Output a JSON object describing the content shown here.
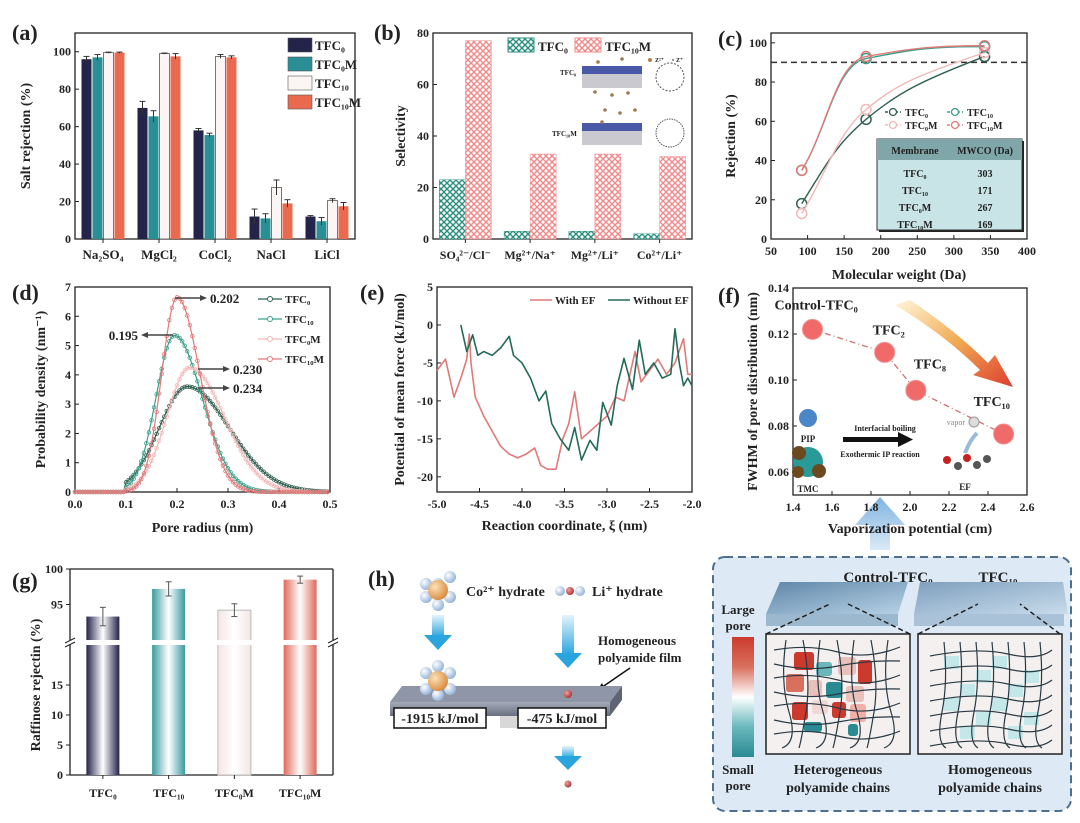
{
  "figure": {
    "panel_labels": [
      "(a)",
      "(b)",
      "(c)",
      "(d)",
      "(e)",
      "(f)",
      "(g)",
      "(h)"
    ]
  },
  "chart_data": [
    {
      "id": "a",
      "type": "bar",
      "title": "",
      "xlabel": "",
      "ylabel": "Salt rejection (%)",
      "ylim": [
        0,
        110
      ],
      "yticks": [
        "0",
        "20",
        "40",
        "60",
        "80",
        "100"
      ],
      "categories": [
        "Na₂SO₄",
        "MgCl₂",
        "CoCl₂",
        "NaCl",
        "LiCl"
      ],
      "legend_position": "top-right",
      "series": [
        {
          "name": "TFC₀",
          "color": "#24234a",
          "values": [
            96,
            70,
            58,
            12,
            12
          ],
          "errors": [
            1.5,
            3.5,
            1,
            4,
            0.5
          ]
        },
        {
          "name": "TFC₀M",
          "color": "#2a8f95",
          "values": [
            97,
            65.5,
            55.5,
            11,
            9.5
          ],
          "errors": [
            1.5,
            3,
            1,
            2.5,
            2
          ]
        },
        {
          "name": "TFC₁₀",
          "color": "#fbf6f4",
          "values": [
            99.5,
            99,
            97.5,
            27.5,
            20.5
          ],
          "errors": [
            0.3,
            0.3,
            1,
            4,
            1
          ]
        },
        {
          "name": "TFC₁₀M",
          "color": "#e96a4f",
          "values": [
            99.5,
            97.5,
            97,
            19,
            17.5
          ],
          "errors": [
            0.3,
            1.5,
            0.8,
            2,
            2
          ]
        }
      ]
    },
    {
      "id": "b",
      "type": "bar",
      "xlabel": "",
      "ylabel": "Selectivity",
      "ylim": [
        0,
        80
      ],
      "yticks": [
        "0",
        "20",
        "40",
        "60",
        "80"
      ],
      "categories": [
        "SO₄²⁻/Cl⁻",
        "Mg²⁺/Na⁺",
        "Mg²⁺/Li⁺",
        "Co²⁺/Li⁺"
      ],
      "legend_position": "top",
      "series": [
        {
          "name": "TFC₀",
          "color": "#2a8f7f",
          "pattern": "crosshatch",
          "values": [
            23,
            3,
            3,
            2
          ]
        },
        {
          "name": "TFC₁₀M",
          "color": "#f08a8a",
          "pattern": "crosshatch",
          "values": [
            77,
            33,
            33,
            32
          ]
        }
      ],
      "inset": {
        "labels": [
          "TFC₀",
          "TFC₁₀M"
        ],
        "legend": [
          "Z²⁺",
          "Z⁺"
        ]
      }
    },
    {
      "id": "c",
      "type": "line",
      "xlabel": "Molecular weight (Da)",
      "ylabel": "Rejection (%)",
      "xlim": [
        50,
        400
      ],
      "ylim": [
        0,
        100
      ],
      "xticks": [
        "50",
        "100",
        "150",
        "200",
        "250",
        "300",
        "350",
        "400"
      ],
      "yticks": [
        "0",
        "20",
        "40",
        "60",
        "80",
        "100"
      ],
      "reference_line": 90,
      "x": [
        92,
        180,
        342
      ],
      "legend_position": "center-right",
      "series": [
        {
          "name": "TFC₀",
          "color": "#2f5f4f",
          "values": [
            18,
            61,
            93
          ]
        },
        {
          "name": "TFC₁₀",
          "color": "#3aa08a",
          "values": [
            35,
            92,
            98
          ]
        },
        {
          "name": "TFC₀M",
          "color": "#f2b8b8",
          "values": [
            13,
            66,
            95
          ]
        },
        {
          "name": "TFC₁₀M",
          "color": "#e07a7a",
          "values": [
            35,
            93,
            98.5
          ]
        }
      ],
      "table": {
        "headers": [
          "Membrane",
          "MWCO (Da)"
        ],
        "rows": [
          [
            "TFC₀",
            "303"
          ],
          [
            "TFC₁₀",
            "171"
          ],
          [
            "TFC₀M",
            "267"
          ],
          [
            "TFC₁₀M",
            "169"
          ]
        ]
      }
    },
    {
      "id": "d",
      "type": "line",
      "xlabel": "Pore radius (nm)",
      "ylabel": "Probability density (nm⁻¹)",
      "xlim": [
        0,
        0.5
      ],
      "ylim": [
        0,
        7
      ],
      "xticks": [
        "0.0",
        "0.1",
        "0.2",
        "0.3",
        "0.4",
        "0.5"
      ],
      "yticks": [
        "0",
        "1",
        "2",
        "3",
        "4",
        "5",
        "6",
        "7"
      ],
      "legend_position": "top-right",
      "series": [
        {
          "name": "TFC₀",
          "color": "#2f5f4f",
          "peak_x": 0.22,
          "peak_y": 3.6,
          "sigma": 0.055,
          "annotation": "0.234"
        },
        {
          "name": "TFC₁₀",
          "color": "#3aa08a",
          "peak_x": 0.195,
          "peak_y": 5.35,
          "sigma": 0.036,
          "annotation": "0.195"
        },
        {
          "name": "TFC₀M",
          "color": "#f2b8b8",
          "peak_x": 0.225,
          "peak_y": 4.25,
          "sigma": 0.045,
          "annotation": "0.230"
        },
        {
          "name": "TFC₁₀M",
          "color": "#e07a7a",
          "peak_x": 0.2,
          "peak_y": 6.65,
          "sigma": 0.03,
          "annotation": "0.202"
        }
      ]
    },
    {
      "id": "e",
      "type": "line",
      "xlabel": "Reaction coordinate, ξ (nm)",
      "ylabel": "Potential of mean force (kJ/mol)",
      "xlim": [
        -5.0,
        -2.0
      ],
      "ylim": [
        -22,
        5
      ],
      "xticks": [
        "-5.0",
        "-4.5",
        "-4.0",
        "-3.5",
        "-3.0",
        "-2.5",
        "-2.0"
      ],
      "yticks": [
        "-20",
        "-15",
        "-10",
        "-5",
        "0",
        "5"
      ],
      "legend_position": "top-right",
      "series": [
        {
          "name": "With EF",
          "color": "#e07a7a",
          "x": [
            -5.0,
            -4.9,
            -4.8,
            -4.72,
            -4.65,
            -4.62,
            -4.6,
            -4.55,
            -4.45,
            -4.35,
            -4.25,
            -4.15,
            -4.05,
            -3.95,
            -3.85,
            -3.78,
            -3.7,
            -3.6,
            -3.52,
            -3.45,
            -3.38,
            -3.3,
            -3.2,
            -3.1,
            -3.0,
            -2.9,
            -2.8,
            -2.7,
            -2.67,
            -2.6,
            -2.5,
            -2.4,
            -2.3,
            -2.2,
            -2.1,
            -2.05,
            -2.0
          ],
          "values": [
            -6,
            -4.5,
            -9.5,
            -7,
            -4.5,
            -1.2,
            -5,
            -9.5,
            -12,
            -14,
            -16,
            -17,
            -17.5,
            -17,
            -16.2,
            -18.5,
            -19,
            -19,
            -15,
            -13,
            -8.8,
            -15,
            -14,
            -13,
            -12,
            -9.5,
            -10,
            -5,
            -3.5,
            -7.5,
            -6,
            -4.5,
            -6.5,
            -5,
            -1.8,
            -6.5,
            -6.5
          ]
        },
        {
          "name": "Without EF",
          "color": "#236b58",
          "x": [
            -4.72,
            -4.65,
            -4.58,
            -4.52,
            -4.45,
            -4.35,
            -4.25,
            -4.15,
            -4.1,
            -4.0,
            -3.9,
            -3.8,
            -3.72,
            -3.65,
            -3.55,
            -3.45,
            -3.38,
            -3.3,
            -3.2,
            -3.12,
            -3.05,
            -2.95,
            -2.88,
            -2.8,
            -2.7,
            -2.62,
            -2.55,
            -2.45,
            -2.35,
            -2.25,
            -2.2,
            -2.15,
            -2.1,
            -2.05,
            -2.0
          ],
          "values": [
            0,
            -3.5,
            -1.3,
            -4,
            -3.5,
            -4,
            -3,
            -1.5,
            -4,
            -5,
            -7,
            -10,
            -8.7,
            -13,
            -15,
            -16.5,
            -13.5,
            -17.8,
            -15.2,
            -16.5,
            -10.2,
            -13.2,
            -8,
            -4.4,
            -8.5,
            -2,
            -6.5,
            -5,
            -7,
            -6.5,
            -0.5,
            -5,
            -8,
            -7,
            -8
          ]
        }
      ]
    },
    {
      "id": "f",
      "type": "scatter",
      "xlabel": "Vaporization potential (cm)",
      "ylabel": "FWHM of pore distribution (nm)",
      "xlim": [
        1.4,
        2.6
      ],
      "ylim": [
        0.05,
        0.14
      ],
      "xticks": [
        "1.4",
        "1.6",
        "1.8",
        "2.0",
        "2.2",
        "2.4",
        "2.6"
      ],
      "yticks": [
        "0.06",
        "0.08",
        "0.10",
        "0.12",
        "0.14"
      ],
      "points": [
        {
          "label": "Control-TFC₀",
          "x": 1.5,
          "y": 0.122
        },
        {
          "label": "TFC₂",
          "x": 1.87,
          "y": 0.112
        },
        {
          "label": "TFC₈",
          "x": 2.03,
          "y": 0.0955
        },
        {
          "label": "TFC₁₀",
          "x": 2.48,
          "y": 0.0765
        }
      ],
      "color": "#f06a6a",
      "inset": {
        "pip": "PIP",
        "tmc": "TMC",
        "boiling": "Interfacial boiling",
        "reaction": "Exothermic IP reaction",
        "ef": "EF",
        "vapor": "vapor"
      }
    },
    {
      "id": "g",
      "type": "bar",
      "xlabel": "",
      "ylabel": "Raffinose rejectin (%)",
      "axis_break": true,
      "ylim_lower": [
        0,
        20
      ],
      "ylim_upper": [
        90,
        100
      ],
      "yticks_lower": [
        "0",
        "5",
        "10",
        "15"
      ],
      "yticks_upper": [
        "95",
        "100"
      ],
      "categories": [
        "TFC₀",
        "TFC₁₀",
        "TFC₀M",
        "TFC₁₀M"
      ],
      "values": [
        93.3,
        97.2,
        94.2,
        98.5
      ],
      "errors": [
        1.3,
        1.0,
        0.9,
        0.5
      ],
      "colors": [
        "#23224a",
        "#3a9aa0",
        "#f3e6e4",
        "#e06a5c"
      ]
    }
  ],
  "panel_h": {
    "co_label": "Co²⁺ hydrate",
    "li_label": "Li⁺ hydrate",
    "film_label_1": "Homogeneous",
    "film_label_2": "polyamide film",
    "energy_co": "-1915 kJ/mol",
    "energy_li": "-475 kJ/mol"
  },
  "panel_i": {
    "left_title": "Control-TFC₀",
    "right_title": "TFC₁₀",
    "large_pore": [
      "Large",
      "pore"
    ],
    "small_pore": [
      "Small",
      "pore"
    ],
    "left_caption": [
      "Heterogeneous",
      "polyamide chains"
    ],
    "right_caption": [
      "Homogeneous",
      "polyamide chains"
    ]
  }
}
